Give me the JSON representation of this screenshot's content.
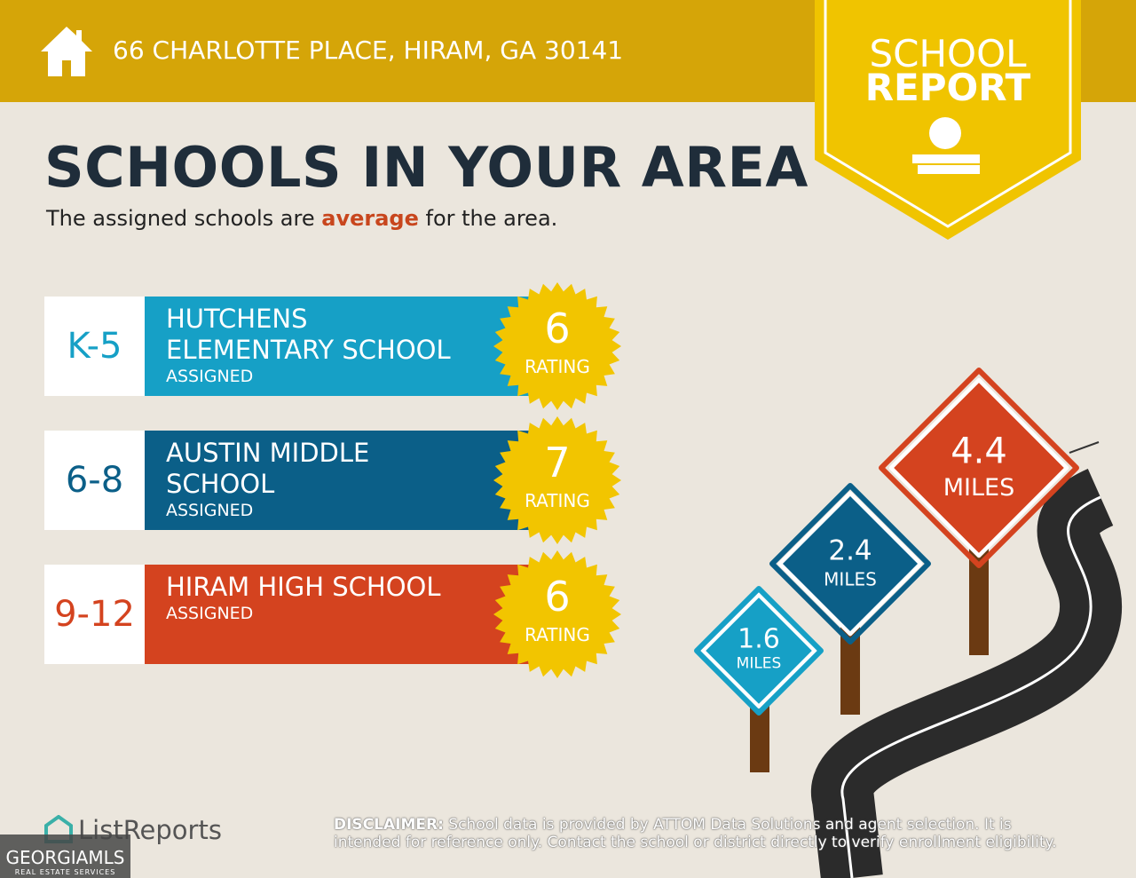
{
  "header": {
    "address": "66 CHARLOTTE PLACE, HIRAM, GA 30141"
  },
  "badge": {
    "line1": "SCHOOL",
    "line2": "REPORT"
  },
  "heading": "SCHOOLS IN YOUR AREA",
  "subtitle": {
    "before": "The assigned schools are ",
    "highlight": "average",
    "after": " for the area."
  },
  "schools": [
    {
      "grade": "K-5",
      "name": [
        "HUTCHENS",
        "ELEMENTARY SCHOOL"
      ],
      "status": "ASSIGNED",
      "rating": "6",
      "rating_label": "RATING"
    },
    {
      "grade": "6-8",
      "name": [
        "AUSTIN MIDDLE",
        "SCHOOL"
      ],
      "status": "ASSIGNED",
      "rating": "7",
      "rating_label": "RATING"
    },
    {
      "grade": "9-12",
      "name": [
        "HIRAM HIGH SCHOOL"
      ],
      "status": "ASSIGNED",
      "rating": "6",
      "rating_label": "RATING"
    }
  ],
  "signs": [
    {
      "distance": "1.6",
      "unit": "MILES"
    },
    {
      "distance": "2.4",
      "unit": "MILES"
    },
    {
      "distance": "4.4",
      "unit": "MILES"
    }
  ],
  "footer": {
    "brand": "ListReports",
    "disclaimer_label": "DISCLAIMER:",
    "disclaimer": " School data is provided by ATTOM Data Solutions and agent selection. It is intended for reference only. Contact the school or district directly to verify enrollment eligibility."
  },
  "watermark": {
    "name": "GEORGIAMLS",
    "tagline": "REAL ESTATE SERVICES"
  }
}
